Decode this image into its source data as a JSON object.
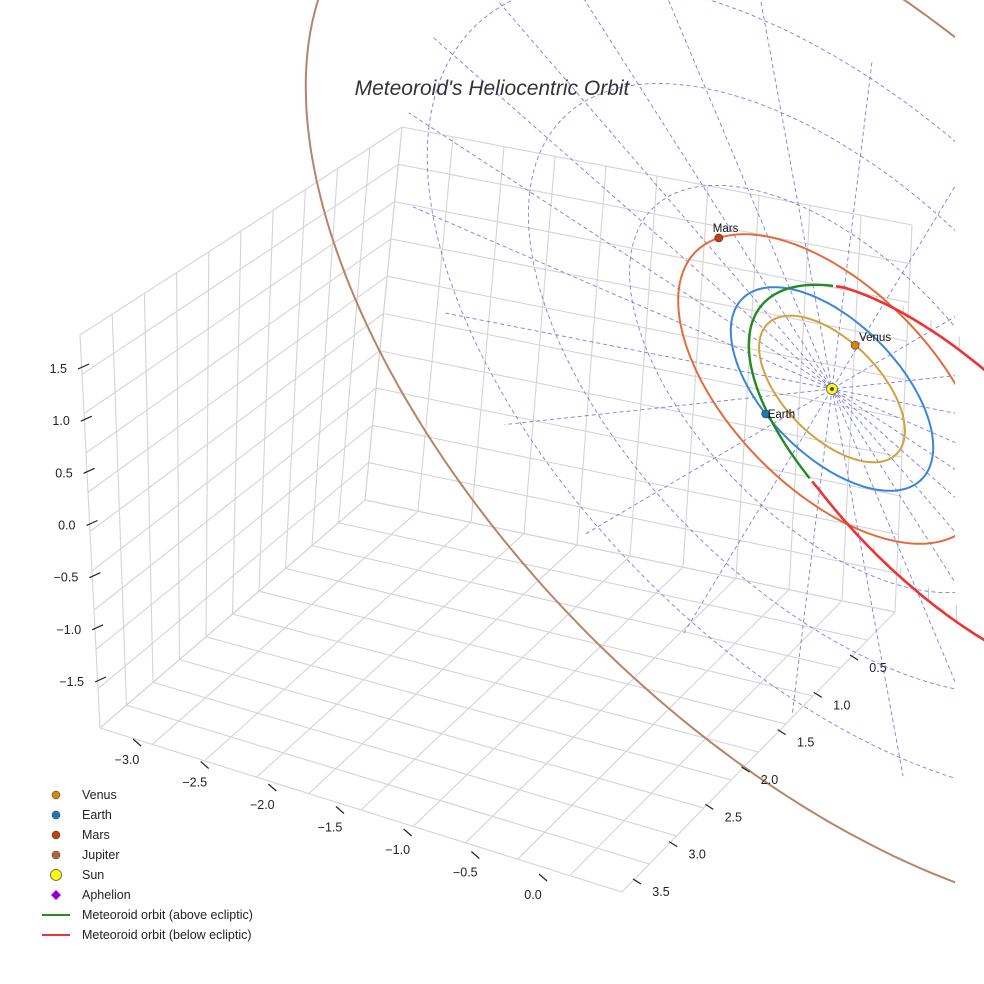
{
  "chart_data": {
    "type": "line",
    "projection": "3d",
    "title": "Meteoroid's Heliocentric Orbit",
    "axes": {
      "x_ticks": [
        "−3.0",
        "−2.5",
        "−2.0",
        "−1.5",
        "−1.0",
        "−0.5",
        "0.0"
      ],
      "y_ticks": [
        "0.5",
        "1.0",
        "1.5",
        "2.0",
        "2.5",
        "3.0",
        "3.5"
      ],
      "z_ticks": [
        "1.5",
        "1.0",
        "0.5",
        "0.0",
        "−0.5",
        "−1.0",
        "−1.5"
      ],
      "xlim": [
        -3.3,
        0.2
      ],
      "ylim": [
        0.3,
        3.7
      ],
      "zlim": [
        -1.9,
        1.8
      ]
    },
    "sun": {
      "name": "Sun",
      "color": "#ffff00",
      "position": [
        0,
        0,
        0
      ]
    },
    "planets": [
      {
        "name": "Venus",
        "color": "#d4870a",
        "orbit_color": "#d4a040",
        "radius_au": 0.72
      },
      {
        "name": "Earth",
        "color": "#1f77b4",
        "orbit_color": "#3a86d6",
        "radius_au": 1.0
      },
      {
        "name": "Mars",
        "color": "#c1440e",
        "orbit_color": "#e06c40",
        "radius_au": 1.52
      },
      {
        "name": "Jupiter",
        "color": "#b5653c",
        "orbit_color": "#b5846a",
        "radius_au": 5.2
      }
    ],
    "aphelion": {
      "name": "Aphelion",
      "color": "#9400d3"
    },
    "meteoroid": {
      "semi_major_axis_au": 2.0,
      "eccentricity": 0.59,
      "series": [
        {
          "name": "Meteoroid orbit (above ecliptic)",
          "color": "#228b22"
        },
        {
          "name": "Meteoroid orbit (below ecliptic)",
          "color": "#ee3333"
        }
      ]
    },
    "ecliptic_grid": {
      "style": "dashed",
      "color": "#6666dd"
    },
    "legend": {
      "position": "bottom-left",
      "entries": [
        {
          "label": "Venus",
          "marker": "circle",
          "color": "#d4870a"
        },
        {
          "label": "Earth",
          "marker": "circle",
          "color": "#1f77b4"
        },
        {
          "label": "Mars",
          "marker": "circle",
          "color": "#c1440e"
        },
        {
          "label": "Jupiter",
          "marker": "circle",
          "color": "#b5653c"
        },
        {
          "label": "Sun",
          "marker": "circle-large",
          "color": "#ffff00"
        },
        {
          "label": "Aphelion",
          "marker": "diamond",
          "color": "#9400d3"
        },
        {
          "label": "Meteoroid orbit (above ecliptic)",
          "marker": "line",
          "color": "#228b22"
        },
        {
          "label": "Meteoroid orbit (below ecliptic)",
          "marker": "line",
          "color": "#ee3333"
        }
      ]
    }
  }
}
